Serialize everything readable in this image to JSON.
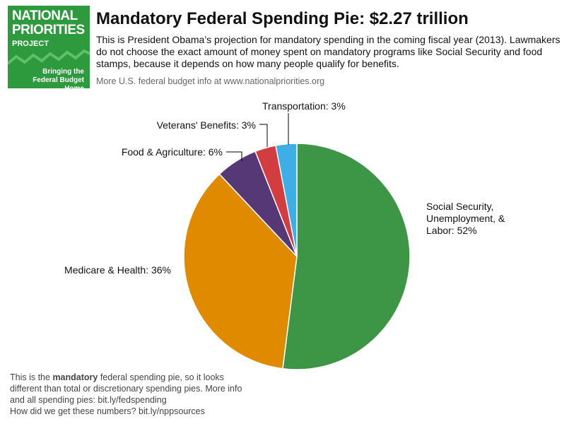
{
  "logo": {
    "line1": "NATIONAL",
    "line2": "PRIORITIES",
    "line3": "PROJECT",
    "tagline1": "Bringing the",
    "tagline2": "Federal Budget Home",
    "color": "#2e9a3e"
  },
  "header": {
    "title": "Mandatory Federal Spending Pie: $2.27 trillion",
    "description": "This is President Obama’s projection for mandatory spending in the coming fiscal year (2013). Lawmakers do not choose the exact amount of money spent on mandatory programs like Social Security and food stamps, because it depends on how many people qualify for benefits.",
    "more_info": "More U.S. federal budget info at www.nationalpriorities.org"
  },
  "footer": {
    "note_prefix": "This is the ",
    "note_bold": "mandatory",
    "note_suffix": " federal spending pie, so it looks different than total or discretionary spending pies. More info and all spending pies: bit.ly/fedspending",
    "sources": "How did we get these numbers? bit.ly/nppsources"
  },
  "chart_data": {
    "type": "pie",
    "title": "Mandatory Federal Spending Pie: $2.27 trillion",
    "slices": [
      {
        "label": "Social Security, Unemployment, & Labor: 52%",
        "value": 52,
        "color": "#3d9546"
      },
      {
        "label": "Medicare & Health: 36%",
        "value": 36,
        "color": "#e08a00"
      },
      {
        "label": "Food & Agriculture: 6%",
        "value": 6,
        "color": "#553875"
      },
      {
        "label": "Veterans' Benefits: 3%",
        "value": 3,
        "color": "#d33d3f"
      },
      {
        "label": "Transportation: 3%",
        "value": 3,
        "color": "#3eaee6"
      }
    ]
  }
}
